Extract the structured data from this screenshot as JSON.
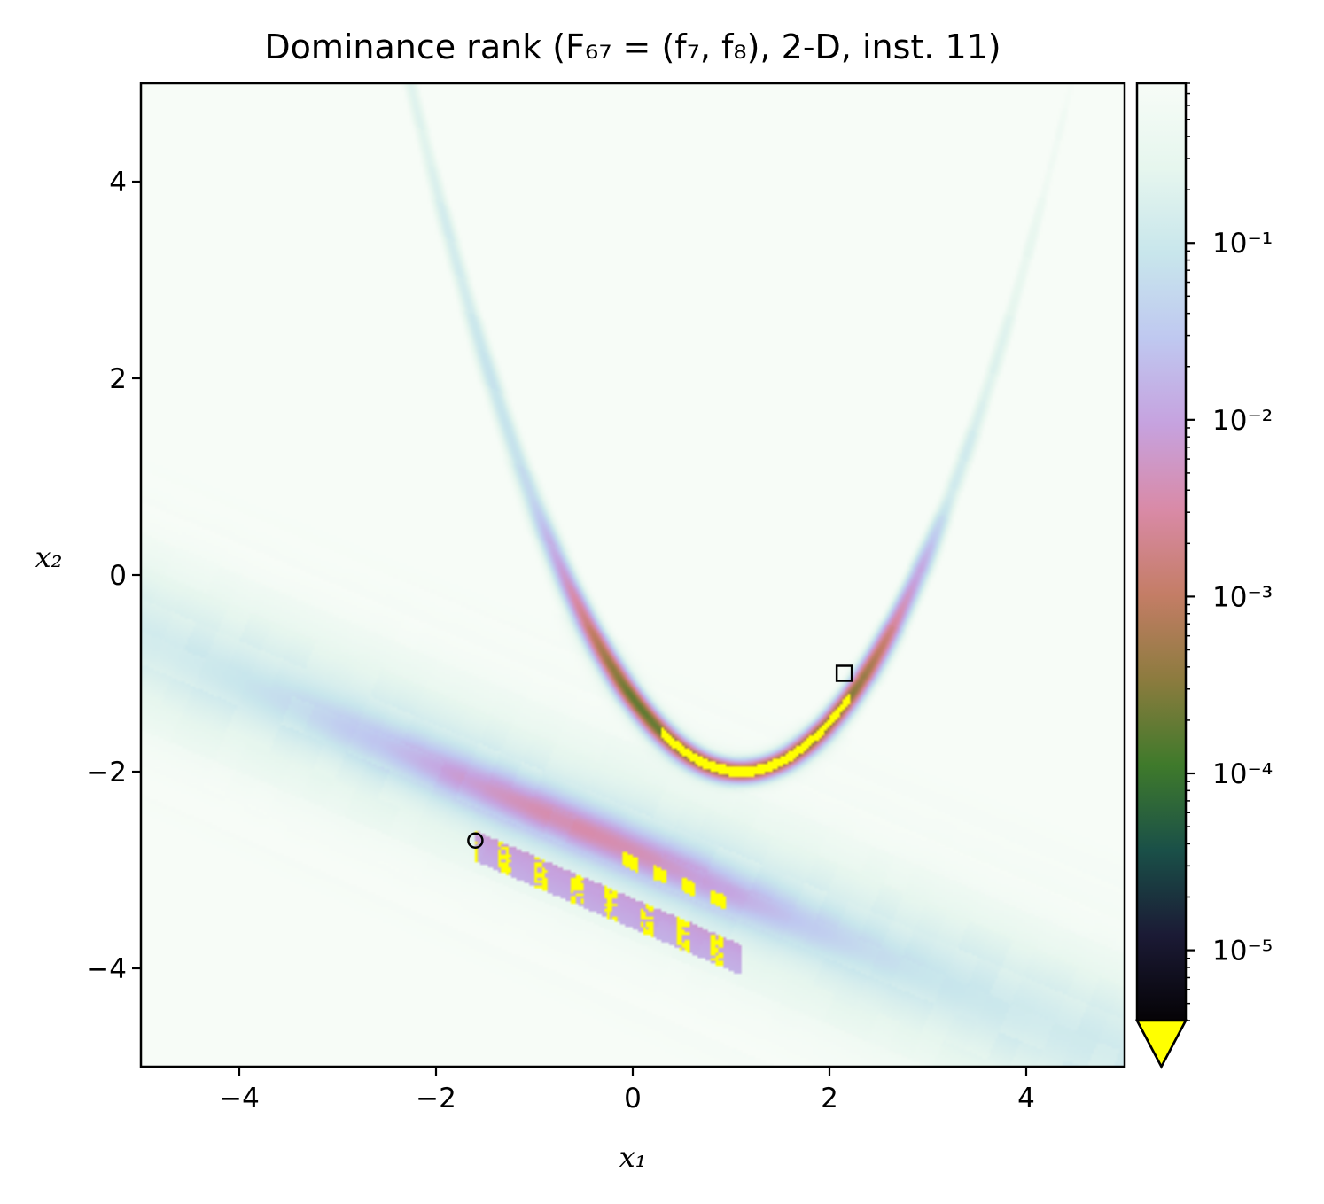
{
  "chart_data": {
    "type": "heatmap",
    "title": "Dominance rank (F₆₇ = (f₇, f₈), 2-D, inst. 11)",
    "xlabel": "x₁",
    "ylabel": "x₂",
    "xlim": [
      -5,
      5
    ],
    "ylim": [
      -5,
      5
    ],
    "x_ticks": [
      -4,
      -2,
      0,
      2,
      4
    ],
    "y_ticks": [
      -4,
      -2,
      0,
      2,
      4
    ],
    "x_tick_labels": [
      "−4",
      "−2",
      "0",
      "2",
      "4"
    ],
    "y_tick_labels": [
      "−4",
      "−2",
      "0",
      "2",
      "4"
    ],
    "colorbar": {
      "scale": "log",
      "range": [
        4e-06,
        0.8
      ],
      "ticks": [
        1e-05,
        0.0001,
        0.001,
        0.01,
        0.1
      ],
      "tick_labels": [
        "10⁻⁵",
        "10⁻⁴",
        "10⁻³",
        "10⁻²",
        "10⁻¹"
      ],
      "extend": "min",
      "under_color": "#ffff00",
      "colormap": "cubehelix-like (black → green → brown → pink → lavender → light cyan → white)"
    },
    "colormap_stops": [
      {
        "color": "#050306"
      },
      {
        "color": "#1b1a35"
      },
      {
        "color": "#1a5048"
      },
      {
        "color": "#3f7a2b"
      },
      {
        "color": "#8c7b3e"
      },
      {
        "color": "#c47d66"
      },
      {
        "color": "#d98aa7"
      },
      {
        "color": "#c6a2df"
      },
      {
        "color": "#bfc8f0"
      },
      {
        "color": "#c8e6ec"
      },
      {
        "color": "#e6f6ee"
      },
      {
        "color": "#f7fcf7"
      }
    ],
    "markers": [
      {
        "shape": "circle",
        "x": -1.6,
        "y": -2.7
      },
      {
        "shape": "square",
        "x": 2.15,
        "y": -1.0
      }
    ]
  }
}
